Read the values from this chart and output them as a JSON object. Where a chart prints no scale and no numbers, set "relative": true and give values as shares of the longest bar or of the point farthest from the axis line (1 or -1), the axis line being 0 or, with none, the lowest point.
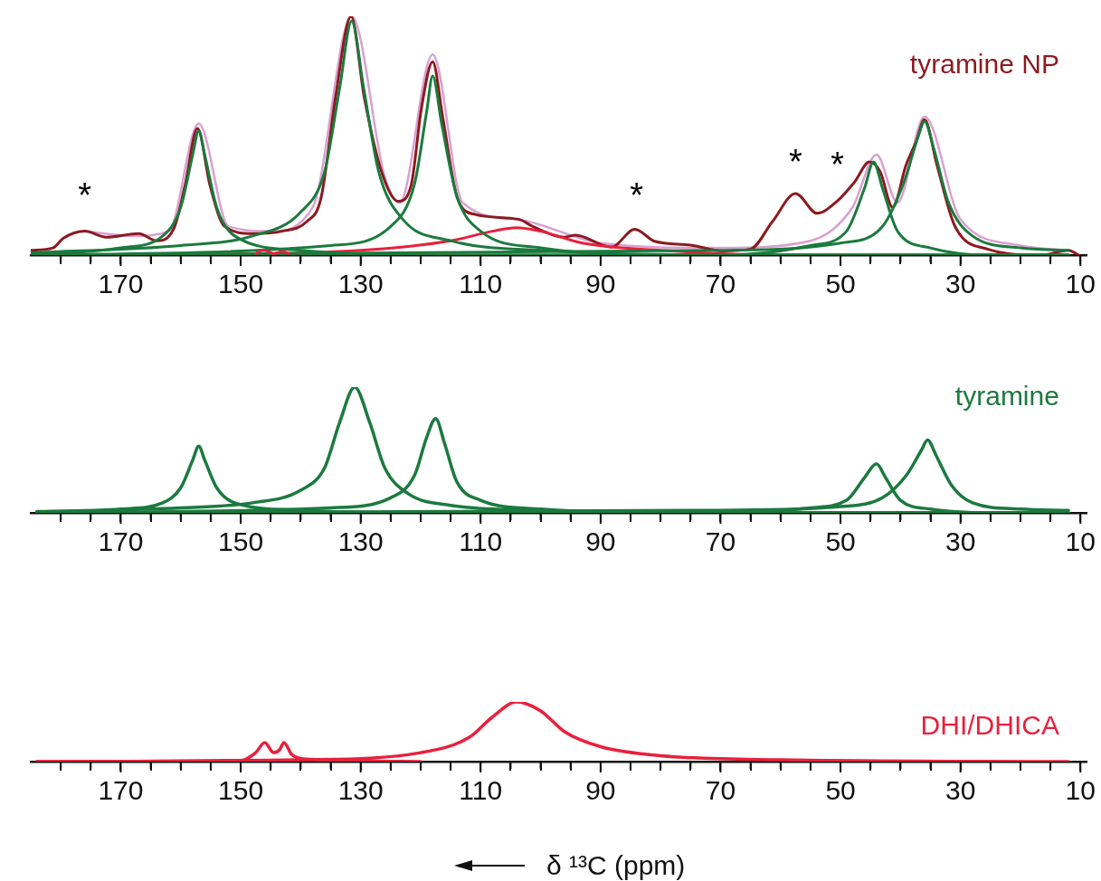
{
  "chart_data": [
    {
      "type": "line",
      "relative": true,
      "marker": "none",
      "xlim": [
        185,
        9
      ],
      "xticks": [
        {
          "value": 180,
          "label": null
        },
        {
          "value": 175,
          "label": null
        },
        170,
        {
          "value": 165,
          "label": null
        },
        {
          "value": 160,
          "label": null
        },
        {
          "value": 155,
          "label": null
        },
        150,
        {
          "value": 145,
          "label": null
        },
        {
          "value": 140,
          "label": null
        },
        {
          "value": 135,
          "label": null
        },
        130,
        {
          "value": 125,
          "label": null
        },
        {
          "value": 120,
          "label": null
        },
        {
          "value": 115,
          "label": null
        },
        110,
        {
          "value": 105,
          "label": null
        },
        {
          "value": 100,
          "label": null
        },
        {
          "value": 95,
          "label": null
        },
        90,
        {
          "value": 85,
          "label": null
        },
        {
          "value": 80,
          "label": null
        },
        {
          "value": 75,
          "label": null
        },
        70,
        {
          "value": 65,
          "label": null
        },
        {
          "value": 60,
          "label": null
        },
        {
          "value": 55,
          "label": null
        },
        50,
        {
          "value": 45,
          "label": null
        },
        {
          "value": 40,
          "label": null
        },
        {
          "value": 35,
          "label": null
        },
        30,
        {
          "value": 25,
          "label": null
        },
        {
          "value": 20,
          "label": null
        },
        {
          "value": 15,
          "label": null
        },
        10
      ],
      "series": [
        {
          "color": "#d9a0d0",
          "x": [
            176,
            168,
            162,
            157,
            152,
            145,
            138,
            131.5,
            126,
            123.5,
            118,
            113,
            104,
            90,
            70,
            55,
            48,
            44,
            40.5,
            36,
            30,
            20,
            12
          ],
          "values": [
            0.1,
            0.08,
            0.1,
            0.55,
            0.12,
            0.1,
            0.2,
            1.0,
            0.33,
            0.22,
            0.84,
            0.22,
            0.15,
            0.05,
            0.03,
            0.06,
            0.2,
            0.42,
            0.22,
            0.58,
            0.15,
            0.04,
            0.02
          ]
        },
        {
          "name": "tyramine NP",
          "color": "#8b1a1f",
          "x": [
            185,
            181.3,
            179.6,
            176,
            172.4,
            167,
            164,
            161,
            159.3,
            157.2,
            155.1,
            152.7,
            147.9,
            143.1,
            139,
            136.6,
            134.2,
            131.6,
            129.4,
            126.4,
            123.7,
            121.6,
            119.9,
            118,
            116.3,
            113.9,
            110.9,
            103.7,
            101.3,
            96.1,
            94.2,
            88.2,
            84.3,
            81,
            75,
            69.7,
            65,
            61.3,
            57.5,
            53.9,
            50.6,
            47.6,
            45.2,
            43.4,
            41.3,
            39.1,
            37.4,
            36,
            33.9,
            31,
            25.5,
            16.6,
            12,
            10.3
          ],
          "values": [
            0.02,
            0.03,
            0.07,
            0.1,
            0.075,
            0.09,
            0.06,
            0.12,
            0.29,
            0.53,
            0.29,
            0.12,
            0.09,
            0.1,
            0.14,
            0.24,
            0.66,
            1.0,
            0.66,
            0.34,
            0.225,
            0.29,
            0.61,
            0.81,
            0.575,
            0.24,
            0.17,
            0.15,
            0.12,
            0.075,
            0.083,
            0.033,
            0.108,
            0.058,
            0.042,
            0.017,
            0.025,
            0.142,
            0.258,
            0.175,
            0.225,
            0.308,
            0.39,
            0.35,
            0.2,
            0.375,
            0.475,
            0.567,
            0.375,
            0.125,
            0.025,
            0,
            0.02,
            0
          ]
        },
        {
          "color": "#e8203c",
          "x": [
            160,
            130,
            115,
            108,
            104,
            100,
            93,
            80,
            60,
            12
          ],
          "values": [
            0,
            0.02,
            0.06,
            0.1,
            0.115,
            0.1,
            0.05,
            0.02,
            0,
            0
          ]
        },
        {
          "color": "#1b7a3e",
          "x": [
            185,
            170,
            163,
            160,
            158,
            157,
            156,
            154,
            151,
            140,
            120,
            12
          ],
          "values": [
            0,
            0.03,
            0.08,
            0.2,
            0.42,
            0.52,
            0.42,
            0.2,
            0.08,
            0.02,
            0,
            0
          ]
        },
        {
          "color": "#1b7a3e",
          "x": [
            185,
            160,
            148,
            140,
            136,
            133.5,
            131.5,
            129.5,
            127,
            123,
            115,
            100,
            60,
            12
          ],
          "values": [
            0.01,
            0.04,
            0.08,
            0.18,
            0.35,
            0.7,
            0.98,
            0.7,
            0.35,
            0.15,
            0.06,
            0.02,
            0,
            0
          ]
        },
        {
          "color": "#1b7a3e",
          "x": [
            185,
            135,
            125,
            121,
            119,
            118,
            116.5,
            114,
            110,
            100,
            80,
            12
          ],
          "values": [
            0,
            0.04,
            0.12,
            0.3,
            0.6,
            0.75,
            0.55,
            0.25,
            0.1,
            0.03,
            0,
            0
          ]
        },
        {
          "color": "#1b7a3e",
          "x": [
            185,
            70,
            55,
            49,
            46,
            44.5,
            43,
            40.5,
            35,
            25,
            12
          ],
          "values": [
            0,
            0,
            0.04,
            0.1,
            0.28,
            0.39,
            0.28,
            0.1,
            0.03,
            0,
            0
          ]
        },
        {
          "color": "#1b7a3e",
          "x": [
            185,
            70,
            50,
            43,
            39.5,
            37,
            36,
            34.5,
            32,
            28,
            20,
            12
          ],
          "values": [
            0,
            0.02,
            0.05,
            0.12,
            0.3,
            0.5,
            0.56,
            0.45,
            0.22,
            0.08,
            0.03,
            0.02
          ]
        },
        {
          "color": "#e8203c",
          "x": [
            147.5,
            147,
            146,
            144.5,
            143,
            142
          ],
          "values": [
            0.006,
            0.015,
            0.02,
            0.006,
            0.015,
            0.006
          ]
        }
      ],
      "annotations": [
        "*",
        "*",
        "*",
        "*"
      ]
    },
    {
      "type": "line",
      "relative": true,
      "marker": "none",
      "xlim": [
        185,
        9
      ],
      "xticks": [
        {
          "value": 180,
          "label": null
        },
        {
          "value": 175,
          "label": null
        },
        170,
        {
          "value": 165,
          "label": null
        },
        {
          "value": 160,
          "label": null
        },
        {
          "value": 155,
          "label": null
        },
        150,
        {
          "value": 145,
          "label": null
        },
        {
          "value": 140,
          "label": null
        },
        {
          "value": 135,
          "label": null
        },
        130,
        {
          "value": 125,
          "label": null
        },
        {
          "value": 120,
          "label": null
        },
        {
          "value": 115,
          "label": null
        },
        110,
        {
          "value": 105,
          "label": null
        },
        {
          "value": 100,
          "label": null
        },
        {
          "value": 95,
          "label": null
        },
        90,
        {
          "value": 85,
          "label": null
        },
        {
          "value": 80,
          "label": null
        },
        {
          "value": 75,
          "label": null
        },
        70,
        {
          "value": 65,
          "label": null
        },
        {
          "value": 60,
          "label": null
        },
        {
          "value": 55,
          "label": null
        },
        50,
        {
          "value": 45,
          "label": null
        },
        {
          "value": 40,
          "label": null
        },
        {
          "value": 35,
          "label": null
        },
        30,
        {
          "value": 25,
          "label": null
        },
        {
          "value": 20,
          "label": null
        },
        {
          "value": 15,
          "label": null
        },
        10
      ],
      "series": [
        {
          "name": "tyramine",
          "color": "#1b7a3e",
          "x": [
            184,
            170,
            163,
            160,
            158,
            157,
            156,
            154,
            151,
            140,
            120,
            12
          ],
          "values": [
            0,
            0.03,
            0.08,
            0.2,
            0.42,
            0.53,
            0.42,
            0.2,
            0.08,
            0.02,
            0,
            0
          ]
        },
        {
          "color": "#1b7a3e",
          "x": [
            184,
            160,
            148,
            140,
            136,
            133.5,
            131,
            128.5,
            126,
            122,
            115,
            100,
            60,
            12
          ],
          "values": [
            0.01,
            0.04,
            0.08,
            0.18,
            0.36,
            0.72,
            1.0,
            0.72,
            0.36,
            0.15,
            0.06,
            0.02,
            0,
            0
          ]
        },
        {
          "color": "#1b7a3e",
          "x": [
            184,
            135,
            125,
            121,
            119,
            117.5,
            116,
            114,
            110,
            100,
            80,
            12
          ],
          "values": [
            0,
            0.04,
            0.12,
            0.3,
            0.6,
            0.75,
            0.55,
            0.25,
            0.1,
            0.03,
            0,
            0
          ]
        },
        {
          "color": "#1b7a3e",
          "x": [
            184,
            70,
            55,
            49,
            46,
            44,
            42.5,
            40,
            35,
            25,
            12
          ],
          "values": [
            0,
            0,
            0.04,
            0.1,
            0.28,
            0.39,
            0.28,
            0.1,
            0.03,
            0,
            0
          ]
        },
        {
          "color": "#1b7a3e",
          "x": [
            184,
            70,
            50,
            43,
            39,
            36.5,
            35.5,
            34,
            31.5,
            28,
            20,
            12
          ],
          "values": [
            0,
            0.02,
            0.05,
            0.12,
            0.3,
            0.5,
            0.58,
            0.45,
            0.22,
            0.08,
            0.03,
            0.02
          ]
        }
      ]
    },
    {
      "type": "line",
      "relative": true,
      "marker": "none",
      "xlim": [
        185,
        9
      ],
      "xlabel": "δ ¹³C (ppm)",
      "xticks": [
        {
          "value": 180,
          "label": null
        },
        {
          "value": 175,
          "label": null
        },
        170,
        {
          "value": 165,
          "label": null
        },
        {
          "value": 160,
          "label": null
        },
        {
          "value": 155,
          "label": null
        },
        150,
        {
          "value": 145,
          "label": null
        },
        {
          "value": 140,
          "label": null
        },
        {
          "value": 135,
          "label": null
        },
        130,
        {
          "value": 125,
          "label": null
        },
        {
          "value": 120,
          "label": null
        },
        {
          "value": 115,
          "label": null
        },
        110,
        {
          "value": 105,
          "label": null
        },
        {
          "value": 100,
          "label": null
        },
        {
          "value": 95,
          "label": null
        },
        90,
        {
          "value": 85,
          "label": null
        },
        {
          "value": 80,
          "label": null
        },
        {
          "value": 75,
          "label": null
        },
        70,
        {
          "value": 65,
          "label": null
        },
        {
          "value": 60,
          "label": null
        },
        {
          "value": 55,
          "label": null
        },
        50,
        {
          "value": 45,
          "label": null
        },
        {
          "value": 40,
          "label": null
        },
        {
          "value": 35,
          "label": null
        },
        30,
        {
          "value": 25,
          "label": null
        },
        {
          "value": 20,
          "label": null
        },
        {
          "value": 15,
          "label": null
        },
        10
      ],
      "series": [
        {
          "name": "DHI/DHICA",
          "color": "#e8203c",
          "x": [
            184,
            140,
            120,
            112,
            108,
            104,
            100,
            96,
            90,
            80,
            60,
            12
          ],
          "values": [
            0,
            0.03,
            0.15,
            0.4,
            0.75,
            1.0,
            0.85,
            0.5,
            0.25,
            0.1,
            0.03,
            0
          ]
        },
        {
          "color": "#e8203c",
          "x": [
            184,
            150,
            147.5,
            146,
            144.5,
            143.5,
            142.8,
            141.5,
            139,
            120
          ],
          "values": [
            0,
            0.02,
            0.15,
            0.32,
            0.15,
            0.2,
            0.32,
            0.12,
            0.04,
            0
          ]
        }
      ]
    }
  ]
}
